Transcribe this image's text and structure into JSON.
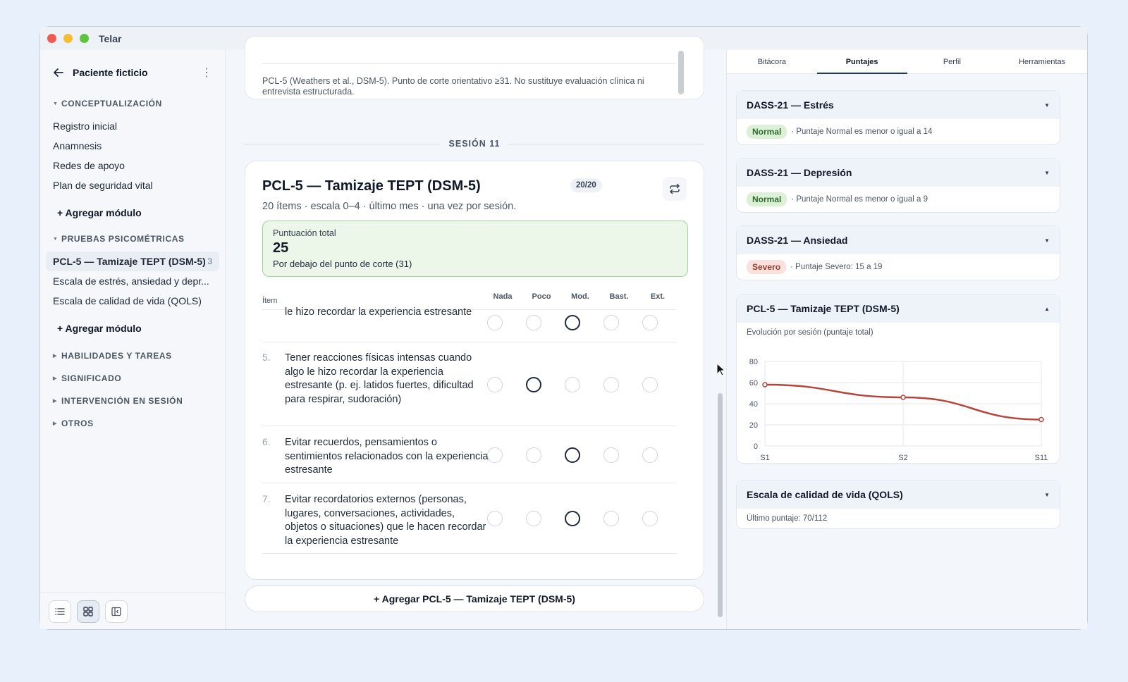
{
  "window": {
    "title": "Telar"
  },
  "sidebar": {
    "patient": "Paciente ficticio",
    "sections": [
      {
        "title": "CONCEPTUALIZACIÓN",
        "expanded": true,
        "items": [
          "Registro inicial",
          "Anamnesis",
          "Redes de apoyo",
          "Plan de seguridad vital"
        ],
        "add": "+ Agregar módulo"
      },
      {
        "title": "PRUEBAS PSICOMÉTRICAS",
        "expanded": true,
        "items": [
          "PCL-5 — Tamizaje TEPT (DSM-5)",
          "Escala de estrés, ansiedad y depr...",
          "Escala de calidad de vida (QOLS)"
        ],
        "active_count": "3",
        "add": "+ Agregar módulo"
      },
      {
        "title": "HABILIDADES Y TAREAS"
      },
      {
        "title": "SIGNIFICADO"
      },
      {
        "title": "INTERVENCIÓN EN SESIÓN"
      },
      {
        "title": "OTROS"
      }
    ]
  },
  "main": {
    "prev_note": "PCL-5 (Weathers et al., DSM-5). Punto de corte orientativo ≥31. No sustituye evaluación clínica ni entrevista estructurada.",
    "session_label": "SESIÓN 11",
    "card": {
      "title": "PCL-5 — Tamizaje TEPT (DSM-5)",
      "badge": "20/20",
      "subtitle": "20 ítems · escala 0–4 · último mes · una vez por sesión.",
      "total_label": "Puntuación total",
      "total_value": "25",
      "total_desc": "Por debajo del punto de corte (31)",
      "columns": {
        "item": "Ítem",
        "options": [
          "Nada",
          "Poco",
          "Mod.",
          "Bast.",
          "Ext."
        ]
      },
      "rows": [
        {
          "num": "",
          "text": "le hizo recordar la experiencia estresante",
          "selected": 2
        },
        {
          "num": "5.",
          "text": "Tener reacciones físicas intensas cuando algo le hizo recordar la experiencia estresante (p. ej. latidos fuertes, dificultad para respirar, sudoración)",
          "selected": 1
        },
        {
          "num": "6.",
          "text": "Evitar recuerdos, pensamientos o sentimientos relacionados con la experiencia estresante",
          "selected": 2
        },
        {
          "num": "7.",
          "text": "Evitar recordatorios externos (personas, lugares, conversaciones, actividades, objetos o situaciones) que le hacen recordar la experiencia estresante",
          "selected": 2
        }
      ]
    },
    "add_button": "+ Agregar PCL-5 — Tamizaje TEPT (DSM-5)"
  },
  "right": {
    "tabs": [
      "Bitácora",
      "Puntajes",
      "Perfil",
      "Herramientas"
    ],
    "active_tab": "Puntajes",
    "scores": [
      {
        "title": "DASS-21 — Estrés",
        "pill": "Normal",
        "note": "· Puntaje Normal es menor o igual a 14"
      },
      {
        "title": "DASS-21 — Depresión",
        "pill": "Normal",
        "note": "· Puntaje Normal es menor o igual a 9"
      },
      {
        "title": "DASS-21 — Ansiedad",
        "pill": "Severo",
        "note": "· Puntaje Severo: 15 a 19"
      }
    ],
    "pcl": {
      "title": "PCL-5 — Tamizaje TEPT (DSM-5)",
      "caption": "Evolución por sesión (puntaje total)"
    },
    "qols": {
      "title": "Escala de calidad de vida (QOLS)",
      "note": "Último puntaje: 70/112"
    }
  },
  "colors": {
    "line": "#b5453a",
    "pill_normal": "#dcf0d8",
    "pill_severo": "#fbe1dc"
  },
  "chart_data": {
    "type": "line",
    "categories": [
      "S1",
      "S2",
      "S11"
    ],
    "values": [
      58,
      46,
      25
    ],
    "yticks": [
      0,
      20,
      40,
      60,
      80
    ],
    "ylim": [
      0,
      80
    ],
    "grid": true
  }
}
